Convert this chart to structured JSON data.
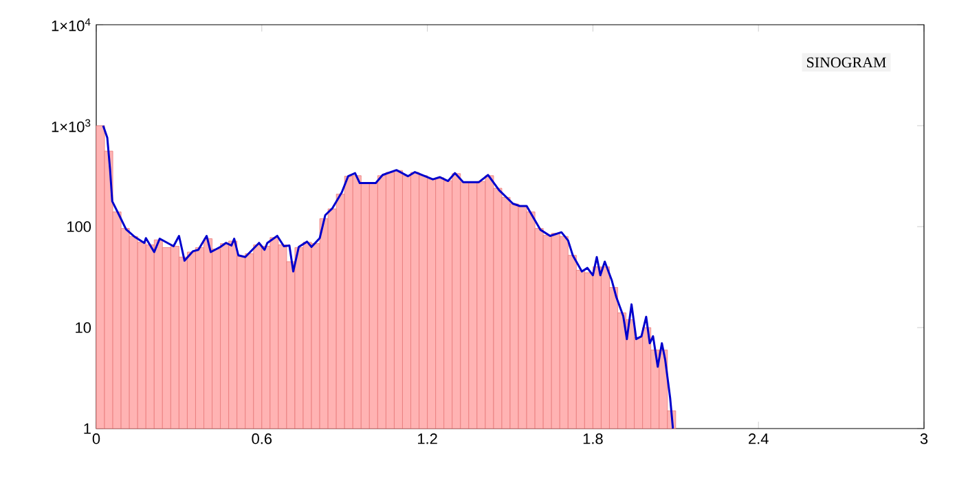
{
  "chart_data": {
    "type": "histogram",
    "annotations": [
      "SINOGRAM"
    ],
    "log": "y",
    "color": "#ffb3b3",
    "bins": [
      0,
      0.03,
      0.06,
      0.09,
      0.12,
      0.15,
      0.18,
      0.21,
      0.24,
      0.27,
      0.3,
      0.33,
      0.36,
      0.39,
      0.42,
      0.45,
      0.48,
      0.51,
      0.54,
      0.57,
      0.6,
      0.63,
      0.66,
      0.69,
      0.72,
      0.75,
      0.78,
      0.81,
      0.84,
      0.87,
      0.9,
      0.93,
      0.96,
      0.99,
      1.02,
      1.05,
      1.08,
      1.11,
      1.14,
      1.17,
      1.2,
      1.23,
      1.26,
      1.29,
      1.32,
      1.35,
      1.38,
      1.41,
      1.44,
      1.47,
      1.5,
      1.53,
      1.56,
      1.59,
      1.62,
      1.65,
      1.68,
      1.71,
      1.74,
      1.77,
      1.8,
      1.83,
      1.86,
      1.89,
      1.92,
      1.95,
      1.98,
      2.01,
      2.04,
      2.07,
      2.1
    ],
    "values": [
      1000,
      560,
      140,
      96,
      80,
      70,
      66,
      74,
      62,
      64,
      50,
      56,
      62,
      76,
      60,
      68,
      72,
      51,
      54,
      66,
      64,
      78,
      66,
      45,
      62,
      70,
      68,
      120,
      150,
      210,
      316,
      320,
      270,
      270,
      320,
      345,
      360,
      320,
      345,
      320,
      296,
      305,
      285,
      335,
      276,
      276,
      280,
      320,
      240,
      195,
      168,
      160,
      140,
      96,
      82,
      86,
      80,
      52,
      37,
      35,
      40,
      40,
      25,
      14,
      12,
      8,
      10,
      6,
      6,
      1.5
    ],
    "xlim": [
      0,
      3
    ],
    "xticks": [
      0,
      0.6,
      1.2,
      1.8,
      2.4,
      3
    ],
    "ylim": [
      1,
      10000
    ],
    "yticks": [
      1,
      10,
      100,
      {
        "value": 1000,
        "label": "1×10$^{3}$"
      },
      {
        "value": 10000,
        "label": "1×10$^{4}$"
      }
    ],
    "series": [
      {
        "type": "line",
        "color": "#0000cc",
        "x": [
          0.025,
          0.04,
          0.05,
          0.058,
          0.083,
          0.108,
          0.14,
          0.174,
          0.18,
          0.21,
          0.23,
          0.28,
          0.3,
          0.32,
          0.35,
          0.37,
          0.4,
          0.415,
          0.45,
          0.47,
          0.49,
          0.5,
          0.515,
          0.54,
          0.59,
          0.61,
          0.62,
          0.656,
          0.68,
          0.7,
          0.714,
          0.734,
          0.764,
          0.78,
          0.81,
          0.83,
          0.855,
          0.89,
          0.913,
          0.938,
          0.955,
          1.013,
          1.038,
          1.088,
          1.13,
          1.155,
          1.22,
          1.245,
          1.275,
          1.3,
          1.33,
          1.387,
          1.42,
          1.46,
          1.51,
          1.535,
          1.56,
          1.61,
          1.645,
          1.686,
          1.71,
          1.727,
          1.76,
          1.78,
          1.8,
          1.814,
          1.827,
          1.843,
          1.868,
          1.885,
          1.91,
          1.923,
          1.94,
          1.957,
          1.976,
          1.993,
          2.006,
          2.018,
          2.035,
          2.05,
          2.062,
          2.08,
          2.09
        ],
        "values": [
          1000,
          760,
          370,
          178,
          130,
          94,
          79,
          69,
          77,
          56,
          76,
          64,
          81,
          46,
          57,
          59,
          81,
          56,
          63,
          69,
          65,
          76,
          52,
          50,
          69,
          59,
          69,
          81,
          64,
          65,
          36,
          63,
          71,
          63,
          77,
          130,
          151,
          219,
          316,
          339,
          270,
          270,
          325,
          363,
          316,
          347,
          294,
          309,
          283,
          339,
          276,
          276,
          325,
          230,
          169,
          160,
          160,
          93,
          81,
          88,
          73,
          52,
          36,
          39,
          33,
          50,
          33,
          45,
          29.6,
          20,
          13,
          7.7,
          17,
          7.7,
          8.2,
          12.8,
          7,
          8.2,
          4.1,
          7,
          4.8,
          2,
          1
        ]
      }
    ]
  }
}
